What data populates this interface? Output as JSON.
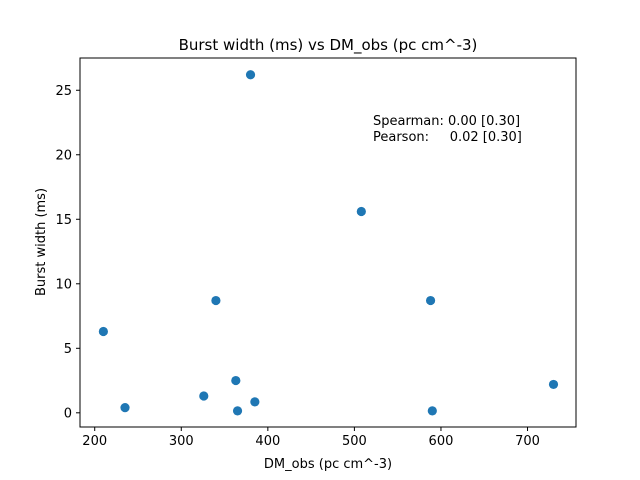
{
  "chart_data": {
    "type": "scatter",
    "title": "Burst width (ms) vs DM_obs (pc cm^-3)",
    "xlabel": "DM_obs (pc cm^-3)",
    "ylabel": "Burst width (ms)",
    "xlim": [
      183,
      756
    ],
    "ylim": [
      -1.1,
      27.5
    ],
    "xticks": [
      200,
      300,
      400,
      500,
      600,
      700
    ],
    "yticks": [
      0,
      5,
      10,
      15,
      20,
      25
    ],
    "grid": false,
    "marker_color": "#1f77b4",
    "points": [
      {
        "x": 210,
        "y": 6.3
      },
      {
        "x": 235,
        "y": 0.4
      },
      {
        "x": 326,
        "y": 1.3
      },
      {
        "x": 340,
        "y": 8.7
      },
      {
        "x": 363,
        "y": 2.5
      },
      {
        "x": 365,
        "y": 0.15
      },
      {
        "x": 380,
        "y": 26.2
      },
      {
        "x": 385,
        "y": 0.85
      },
      {
        "x": 508,
        "y": 15.6
      },
      {
        "x": 588,
        "y": 8.7
      },
      {
        "x": 590,
        "y": 0.15
      },
      {
        "x": 730,
        "y": 2.2
      }
    ],
    "annotations": [
      "Spearman: 0.00 [0.30]",
      "Pearson:     0.02 [0.30]"
    ]
  }
}
